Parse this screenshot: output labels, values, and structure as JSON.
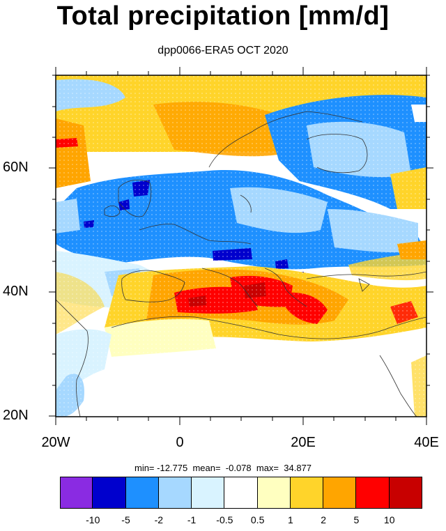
{
  "title": "Total precipitation [mm/d]",
  "subtitle": "dpp0066-ERA5 OCT 2020",
  "axes": {
    "y_ticks": [
      "60N",
      "40N",
      "20N"
    ],
    "x_ticks": [
      "20W",
      "0",
      "20E",
      "40E"
    ]
  },
  "stats": {
    "text": "min= -12.775  mean=  -0.078  max=  34.877"
  },
  "colorbar": {
    "colors": [
      "#8a2be2",
      "#0000cd",
      "#1e90ff",
      "#a6d8ff",
      "#d9f3ff",
      "#ffffff",
      "#ffffc0",
      "#ffd42a",
      "#ffa500",
      "#ff0000",
      "#c80000"
    ],
    "labels": [
      "-10",
      "-5",
      "-2",
      "-1",
      "-0.5",
      "0.5",
      "1",
      "2",
      "5",
      "10"
    ]
  }
}
